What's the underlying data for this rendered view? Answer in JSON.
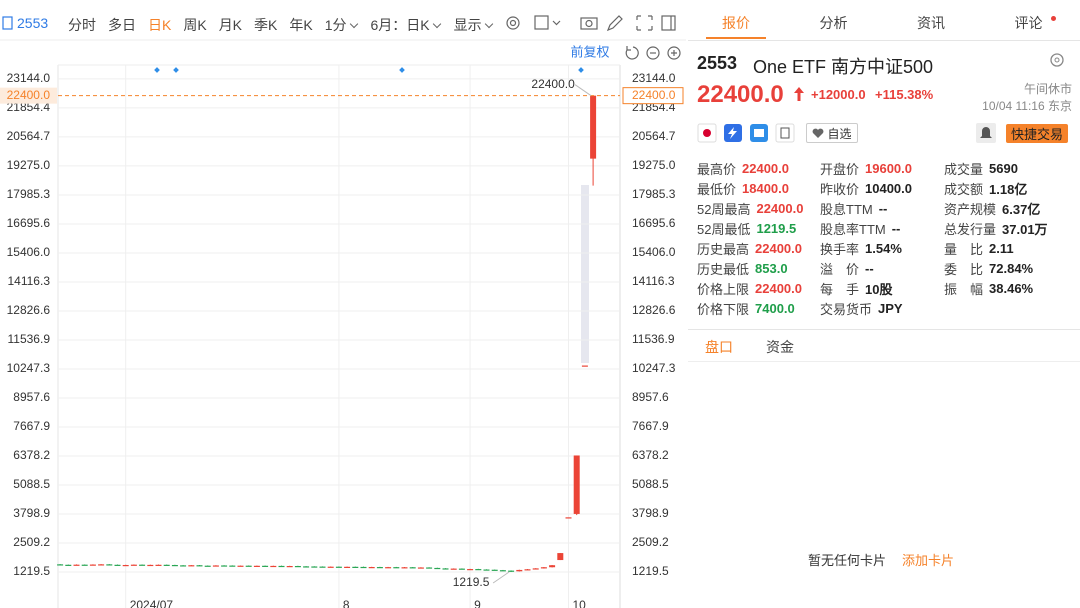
{
  "toolbar": {
    "code": "2553",
    "periods": [
      "分时",
      "多日",
      "日K",
      "周K",
      "月K",
      "季K",
      "年K"
    ],
    "active_index": 2,
    "interval": "1分",
    "range": "6月：日K",
    "display": "显示",
    "adjust": "前复权"
  },
  "chart_data": {
    "type": "candlestick",
    "categories": [
      null,
      null,
      null,
      null,
      null,
      null,
      null,
      null,
      "2024/07",
      null,
      null,
      null,
      null,
      null,
      null,
      null,
      null,
      null,
      null,
      null,
      null,
      null,
      null,
      null,
      null,
      null,
      null,
      null,
      null,
      null,
      null,
      null,
      null,
      null,
      "8",
      null,
      null,
      null,
      null,
      null,
      null,
      null,
      null,
      null,
      null,
      null,
      null,
      null,
      null,
      null,
      "9",
      null,
      null,
      null,
      null,
      null,
      null,
      null,
      null,
      null,
      null,
      null,
      "10",
      null,
      null,
      null
    ],
    "open": [
      1560,
      1540,
      1530,
      1545,
      1535,
      1550,
      1560,
      1540,
      1525,
      1530,
      1545,
      1520,
      1535,
      1540,
      1530,
      1515,
      1505,
      1520,
      1500,
      1495,
      1510,
      1505,
      1490,
      1500,
      1485,
      1495,
      1480,
      1490,
      1475,
      1485,
      1470,
      1465,
      1460,
      1450,
      1455,
      1440,
      1450,
      1445,
      1430,
      1440,
      1425,
      1435,
      1420,
      1430,
      1415,
      1420,
      1400,
      1380,
      1360,
      1370,
      1345,
      1350,
      1330,
      1320,
      1300,
      1280,
      1250,
      1310,
      1340,
      1380,
      1430,
      1750,
      3650,
      3800,
      10400,
      19600
    ],
    "high": [
      1570,
      1550,
      1555,
      1555,
      1560,
      1570,
      1570,
      1550,
      1540,
      1555,
      1555,
      1545,
      1550,
      1550,
      1540,
      1525,
      1530,
      1530,
      1510,
      1520,
      1520,
      1515,
      1510,
      1510,
      1505,
      1505,
      1500,
      1500,
      1495,
      1495,
      1480,
      1475,
      1470,
      1465,
      1465,
      1460,
      1460,
      1455,
      1450,
      1450,
      1445,
      1445,
      1440,
      1440,
      1430,
      1430,
      1410,
      1390,
      1380,
      1380,
      1360,
      1360,
      1340,
      1330,
      1310,
      1290,
      1320,
      1350,
      1390,
      1440,
      1530,
      2060,
      3650,
      6400,
      10400,
      22400
    ],
    "low": [
      1530,
      1520,
      1520,
      1525,
      1525,
      1540,
      1530,
      1515,
      1515,
      1520,
      1510,
      1510,
      1525,
      1520,
      1505,
      1495,
      1495,
      1490,
      1485,
      1485,
      1495,
      1480,
      1480,
      1475,
      1475,
      1470,
      1470,
      1465,
      1465,
      1460,
      1455,
      1450,
      1440,
      1440,
      1430,
      1430,
      1435,
      1420,
      1420,
      1415,
      1415,
      1410,
      1410,
      1405,
      1405,
      1390,
      1370,
      1350,
      1350,
      1335,
      1335,
      1320,
      1310,
      1290,
      1270,
      1219.5,
      1240,
      1300,
      1330,
      1370,
      1420,
      1750,
      3650,
      3750,
      10400,
      18400
    ],
    "close": [
      1540,
      1530,
      1545,
      1535,
      1550,
      1560,
      1540,
      1525,
      1530,
      1545,
      1520,
      1535,
      1540,
      1530,
      1515,
      1505,
      1520,
      1500,
      1495,
      1510,
      1505,
      1490,
      1500,
      1485,
      1495,
      1480,
      1490,
      1475,
      1485,
      1470,
      1465,
      1460,
      1450,
      1455,
      1440,
      1450,
      1445,
      1430,
      1440,
      1425,
      1435,
      1420,
      1430,
      1415,
      1420,
      1400,
      1380,
      1360,
      1370,
      1345,
      1350,
      1330,
      1320,
      1300,
      1280,
      1250,
      1310,
      1340,
      1380,
      1430,
      1520,
      2060,
      3650,
      6400,
      10400,
      22400
    ],
    "up_color": "#eb4436",
    "down_color": "#2aa655",
    "ylim": [
      0,
      23750
    ],
    "yticks": [
      1219.5,
      2509.2,
      3798.9,
      5088.5,
      6378.2,
      7667.9,
      8957.6,
      10247.3,
      11536.9,
      12826.6,
      14116.3,
      {
        "value": 15406,
        "label": "15406.0"
      },
      16695.6,
      17985.3,
      {
        "value": 19275,
        "label": "19275.0"
      },
      20564.7,
      21854.4,
      {
        "value": 23144,
        "label": "23144.0"
      }
    ],
    "grid": true,
    "price_line": {
      "value": 22400,
      "label": "22400.0",
      "color": "#f5822a"
    },
    "annotations": [
      {
        "text": "22400.0",
        "value": 22400
      },
      {
        "text": "1219.5",
        "value": 1219.5
      }
    ]
  },
  "tabs": [
    "报价",
    "分析",
    "资讯",
    "评论"
  ],
  "active_tab": 0,
  "quote": {
    "code": "2553",
    "name": "One ETF 南方中证500",
    "status": "午间休市",
    "price": "22400.0",
    "change": "+12000.0",
    "change_pct": "+115.38%",
    "time": "10/04 11:16 东京",
    "watch": "自选",
    "trade": "快捷交易",
    "stats": [
      [
        {
          "label": "最高价",
          "value": "22400.0",
          "color": "#e8403a"
        },
        {
          "label": "最低价",
          "value": "18400.0",
          "color": "#e8403a"
        },
        {
          "label": "52周最高",
          "value": "22400.0",
          "color": "#e8403a"
        },
        {
          "label": "52周最低",
          "value": "1219.5",
          "color": "#1f9e4a"
        },
        {
          "label": "历史最高",
          "value": "22400.0",
          "color": "#e8403a"
        },
        {
          "label": "历史最低",
          "value": "853.0",
          "color": "#1f9e4a"
        },
        {
          "label": "价格上限",
          "value": "22400.0",
          "color": "#e8403a"
        },
        {
          "label": "价格下限",
          "value": "7400.0",
          "color": "#1f9e4a"
        }
      ],
      [
        {
          "label": "开盘价",
          "value": "19600.0",
          "color": "#e8403a"
        },
        {
          "label": "昨收价",
          "value": "10400.0",
          "color": "#222222"
        },
        {
          "label": "股息TTM",
          "value": "--",
          "color": "#222222"
        },
        {
          "label": "股息率TTM",
          "value": "--",
          "color": "#222222"
        },
        {
          "label": "换手率",
          "value": "1.54%",
          "color": "#222222"
        },
        {
          "label": "溢　价",
          "value": "--",
          "color": "#222222"
        },
        {
          "label": "每　手",
          "value": "10股",
          "color": "#222222"
        },
        {
          "label": "交易货币",
          "value": "JPY",
          "color": "#222222"
        }
      ],
      [
        {
          "label": "成交量",
          "value": "5690",
          "color": "#222222"
        },
        {
          "label": "成交额",
          "value": "1.18亿",
          "color": "#222222"
        },
        {
          "label": "资产规模",
          "value": "6.37亿",
          "color": "#222222"
        },
        {
          "label": "总发行量",
          "value": "37.01万",
          "color": "#222222"
        },
        {
          "label": "量　比",
          "value": "2.11",
          "color": "#222222"
        },
        {
          "label": "委　比",
          "value": "72.84%",
          "color": "#222222"
        },
        {
          "label": "振　幅",
          "value": "38.46%",
          "color": "#222222"
        }
      ]
    ]
  },
  "book_tabs": [
    "盘口",
    "资金"
  ],
  "cards": {
    "empty": "暂无任何卡片",
    "add": "添加卡片"
  }
}
